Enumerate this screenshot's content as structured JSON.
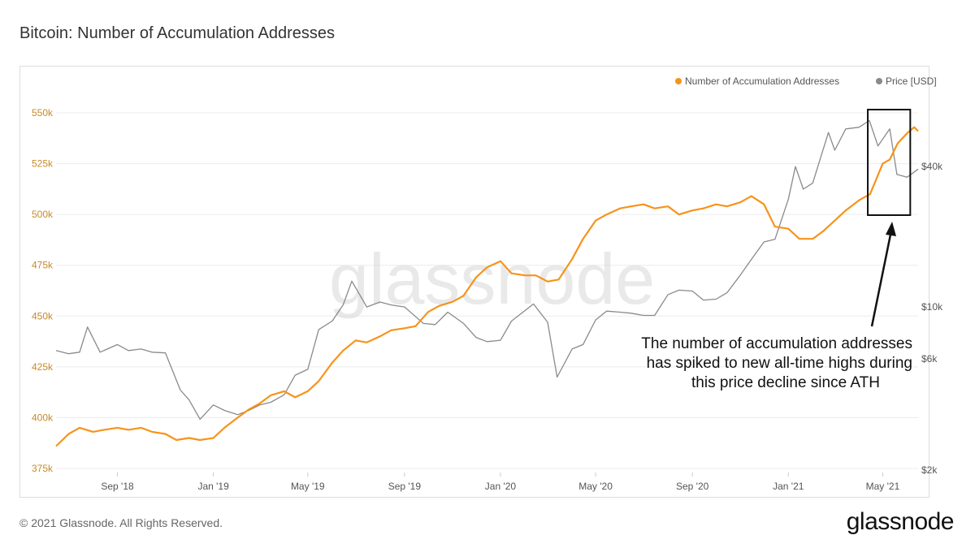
{
  "title": "Bitcoin: Number of Accumulation Addresses",
  "footer": {
    "copyright": "© 2021 Glassnode. All Rights Reserved.",
    "logo": "glassnode"
  },
  "watermark": "glassnode",
  "colors": {
    "accumulation": "#f7931a",
    "price": "#8a8a8a",
    "left_tick": "#c88a2a"
  },
  "chart_data": {
    "type": "line",
    "title": "Bitcoin: Number of Accumulation Addresses",
    "legend": {
      "placement": "top-right",
      "entries": [
        "Number of Accumulation Addresses",
        "Price [USD]"
      ]
    },
    "x_tick_labels": [
      "Sep '18",
      "Jan '19",
      "May '19",
      "Sep '19",
      "Jan '20",
      "May '20",
      "Sep '20",
      "Jan '21",
      "May '21"
    ],
    "x_range": [
      "2018-06-15",
      "2021-06-15"
    ],
    "y_left": {
      "ticks": [
        375000,
        400000,
        425000,
        450000,
        475000,
        500000,
        525000,
        550000
      ],
      "tick_labels": [
        "375k",
        "400k",
        "425k",
        "450k",
        "475k",
        "500k",
        "525k",
        "550k"
      ],
      "range": [
        373000,
        564000
      ]
    },
    "y_right": {
      "scale": "log",
      "ticks": [
        2000,
        6000,
        10000,
        40000
      ],
      "tick_labels": [
        "$2k",
        "$6k",
        "$10k",
        "$40k"
      ],
      "range": [
        1950,
        90000
      ]
    },
    "grid": "horizontal",
    "series": [
      {
        "name": "Number of Accumulation Addresses",
        "axis": "left",
        "points": [
          [
            "2018-06-15",
            386000
          ],
          [
            "2018-07-01",
            392000
          ],
          [
            "2018-07-15",
            395000
          ],
          [
            "2018-08-01",
            393000
          ],
          [
            "2018-08-15",
            394000
          ],
          [
            "2018-09-01",
            395000
          ],
          [
            "2018-09-15",
            394000
          ],
          [
            "2018-10-01",
            395000
          ],
          [
            "2018-10-15",
            393000
          ],
          [
            "2018-11-01",
            392000
          ],
          [
            "2018-11-15",
            389000
          ],
          [
            "2018-12-01",
            390000
          ],
          [
            "2018-12-15",
            389000
          ],
          [
            "2019-01-01",
            390000
          ],
          [
            "2019-01-15",
            395000
          ],
          [
            "2019-02-01",
            400000
          ],
          [
            "2019-02-15",
            404000
          ],
          [
            "2019-03-01",
            407000
          ],
          [
            "2019-03-15",
            411000
          ],
          [
            "2019-04-01",
            413000
          ],
          [
            "2019-04-15",
            410000
          ],
          [
            "2019-05-01",
            413000
          ],
          [
            "2019-05-15",
            418000
          ],
          [
            "2019-06-01",
            427000
          ],
          [
            "2019-06-15",
            433000
          ],
          [
            "2019-07-01",
            438000
          ],
          [
            "2019-07-15",
            437000
          ],
          [
            "2019-08-01",
            440000
          ],
          [
            "2019-08-15",
            443000
          ],
          [
            "2019-09-01",
            444000
          ],
          [
            "2019-09-15",
            445000
          ],
          [
            "2019-10-01",
            452000
          ],
          [
            "2019-10-15",
            455000
          ],
          [
            "2019-11-01",
            457000
          ],
          [
            "2019-11-15",
            460000
          ],
          [
            "2019-12-01",
            469000
          ],
          [
            "2019-12-15",
            474000
          ],
          [
            "2020-01-01",
            477000
          ],
          [
            "2020-01-15",
            471000
          ],
          [
            "2020-02-01",
            470000
          ],
          [
            "2020-02-15",
            470000
          ],
          [
            "2020-03-01",
            467000
          ],
          [
            "2020-03-15",
            468000
          ],
          [
            "2020-04-01",
            478000
          ],
          [
            "2020-04-15",
            488000
          ],
          [
            "2020-05-01",
            497000
          ],
          [
            "2020-05-15",
            500000
          ],
          [
            "2020-06-01",
            503000
          ],
          [
            "2020-06-15",
            504000
          ],
          [
            "2020-07-01",
            505000
          ],
          [
            "2020-07-15",
            503000
          ],
          [
            "2020-08-01",
            504000
          ],
          [
            "2020-08-15",
            500000
          ],
          [
            "2020-09-01",
            502000
          ],
          [
            "2020-09-15",
            503000
          ],
          [
            "2020-10-01",
            505000
          ],
          [
            "2020-10-15",
            504000
          ],
          [
            "2020-11-01",
            506000
          ],
          [
            "2020-11-15",
            509000
          ],
          [
            "2020-12-01",
            505000
          ],
          [
            "2020-12-15",
            494000
          ],
          [
            "2021-01-01",
            493000
          ],
          [
            "2021-01-15",
            488000
          ],
          [
            "2021-02-01",
            488000
          ],
          [
            "2021-02-15",
            492000
          ],
          [
            "2021-03-01",
            497000
          ],
          [
            "2021-03-15",
            502000
          ],
          [
            "2021-04-01",
            507000
          ],
          [
            "2021-04-15",
            510000
          ],
          [
            "2021-05-01",
            525000
          ],
          [
            "2021-05-10",
            527000
          ],
          [
            "2021-05-20",
            535000
          ],
          [
            "2021-06-01",
            540000
          ],
          [
            "2021-06-10",
            543000
          ],
          [
            "2021-06-15",
            541000
          ]
        ]
      },
      {
        "name": "Price [USD]",
        "axis": "right",
        "points": [
          [
            "2018-06-15",
            6500
          ],
          [
            "2018-07-01",
            6300
          ],
          [
            "2018-07-15",
            6400
          ],
          [
            "2018-07-25",
            8200
          ],
          [
            "2018-08-10",
            6400
          ],
          [
            "2018-09-01",
            6900
          ],
          [
            "2018-09-15",
            6500
          ],
          [
            "2018-10-01",
            6600
          ],
          [
            "2018-10-15",
            6400
          ],
          [
            "2018-11-01",
            6350
          ],
          [
            "2018-11-20",
            4400
          ],
          [
            "2018-12-01",
            4000
          ],
          [
            "2018-12-15",
            3300
          ],
          [
            "2019-01-01",
            3800
          ],
          [
            "2019-01-15",
            3600
          ],
          [
            "2019-02-01",
            3450
          ],
          [
            "2019-02-15",
            3600
          ],
          [
            "2019-03-01",
            3800
          ],
          [
            "2019-03-15",
            3900
          ],
          [
            "2019-04-01",
            4200
          ],
          [
            "2019-04-15",
            5100
          ],
          [
            "2019-05-01",
            5400
          ],
          [
            "2019-05-15",
            8000
          ],
          [
            "2019-06-01",
            8700
          ],
          [
            "2019-06-15",
            10200
          ],
          [
            "2019-06-26",
            12900
          ],
          [
            "2019-07-15",
            10000
          ],
          [
            "2019-08-01",
            10500
          ],
          [
            "2019-08-15",
            10200
          ],
          [
            "2019-09-01",
            10000
          ],
          [
            "2019-09-25",
            8500
          ],
          [
            "2019-10-10",
            8400
          ],
          [
            "2019-10-26",
            9500
          ],
          [
            "2019-11-15",
            8500
          ],
          [
            "2019-12-01",
            7400
          ],
          [
            "2019-12-15",
            7100
          ],
          [
            "2020-01-01",
            7200
          ],
          [
            "2020-01-15",
            8700
          ],
          [
            "2020-02-12",
            10300
          ],
          [
            "2020-03-01",
            8600
          ],
          [
            "2020-03-13",
            5000
          ],
          [
            "2020-04-01",
            6600
          ],
          [
            "2020-04-15",
            6900
          ],
          [
            "2020-05-01",
            8800
          ],
          [
            "2020-05-15",
            9600
          ],
          [
            "2020-06-01",
            9500
          ],
          [
            "2020-06-15",
            9400
          ],
          [
            "2020-07-01",
            9200
          ],
          [
            "2020-07-15",
            9200
          ],
          [
            "2020-08-01",
            11300
          ],
          [
            "2020-08-15",
            11800
          ],
          [
            "2020-09-01",
            11700
          ],
          [
            "2020-09-15",
            10700
          ],
          [
            "2020-10-01",
            10800
          ],
          [
            "2020-10-15",
            11500
          ],
          [
            "2020-11-01",
            13700
          ],
          [
            "2020-11-15",
            16000
          ],
          [
            "2020-12-01",
            19000
          ],
          [
            "2020-12-15",
            19500
          ],
          [
            "2021-01-01",
            29000
          ],
          [
            "2021-01-10",
            40000
          ],
          [
            "2021-01-20",
            32000
          ],
          [
            "2021-02-01",
            34000
          ],
          [
            "2021-02-21",
            56000
          ],
          [
            "2021-03-01",
            47000
          ],
          [
            "2021-03-15",
            58000
          ],
          [
            "2021-04-01",
            59000
          ],
          [
            "2021-04-14",
            63000
          ],
          [
            "2021-04-25",
            49000
          ],
          [
            "2021-05-10",
            58000
          ],
          [
            "2021-05-19",
            37000
          ],
          [
            "2021-06-01",
            36000
          ],
          [
            "2021-06-15",
            39000
          ]
        ]
      }
    ],
    "annotation": {
      "lines": [
        "The number of accumulation addresses",
        "has spiked to new all-time highs during",
        "this price decline since ATH"
      ],
      "box_range": [
        "2021-04-12",
        "2021-06-05"
      ]
    }
  }
}
